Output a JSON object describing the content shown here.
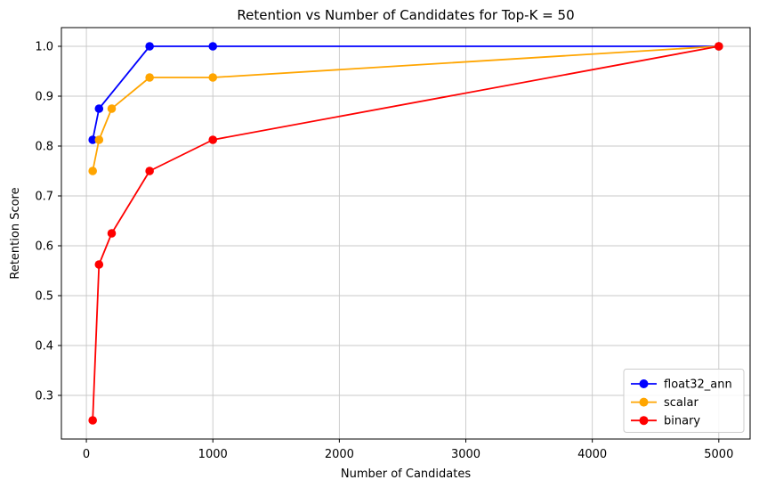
{
  "figure": {
    "background": "#ffffff",
    "text_color": "#000000",
    "spine_color": "#000000"
  },
  "chart_data": {
    "type": "line",
    "title": "Retention vs Number of Candidates for Top-K = 50",
    "xlabel": "Number of Candidates",
    "ylabel": "Retention Score",
    "x_ticks": [
      0,
      1000,
      2000,
      3000,
      4000,
      5000
    ],
    "x_tick_labels": [
      "0",
      "1000",
      "2000",
      "3000",
      "4000",
      "5000"
    ],
    "y_ticks": [
      0.3,
      0.4,
      0.5,
      0.6,
      0.7,
      0.8,
      0.9,
      1.0
    ],
    "y_tick_labels": [
      "0.3",
      "0.4",
      "0.5",
      "0.6",
      "0.7",
      "0.8",
      "0.9",
      "1.0"
    ],
    "xlim": [
      -197.5,
      5247.5
    ],
    "ylim": [
      0.2125,
      1.0375
    ],
    "grid": true,
    "grid_color": "#c8c8c8",
    "legend_position": "lower right",
    "legend_border_color": "#cccccc",
    "legend_background": "#ffffff",
    "series": [
      {
        "name": "float32_ann",
        "color": "#0000ff",
        "x": [
          50,
          100,
          500,
          1000,
          5000
        ],
        "y": [
          0.8125,
          0.875,
          1.0,
          1.0,
          1.0
        ]
      },
      {
        "name": "scalar",
        "color": "#ffa500",
        "x": [
          50,
          100,
          200,
          500,
          1000,
          5000
        ],
        "y": [
          0.75,
          0.8125,
          0.875,
          0.9375,
          0.9375,
          1.0
        ]
      },
      {
        "name": "binary",
        "color": "#ff0000",
        "x": [
          50,
          100,
          200,
          500,
          1000,
          5000
        ],
        "y": [
          0.25,
          0.5625,
          0.625,
          0.75,
          0.8125,
          1.0
        ]
      }
    ]
  }
}
